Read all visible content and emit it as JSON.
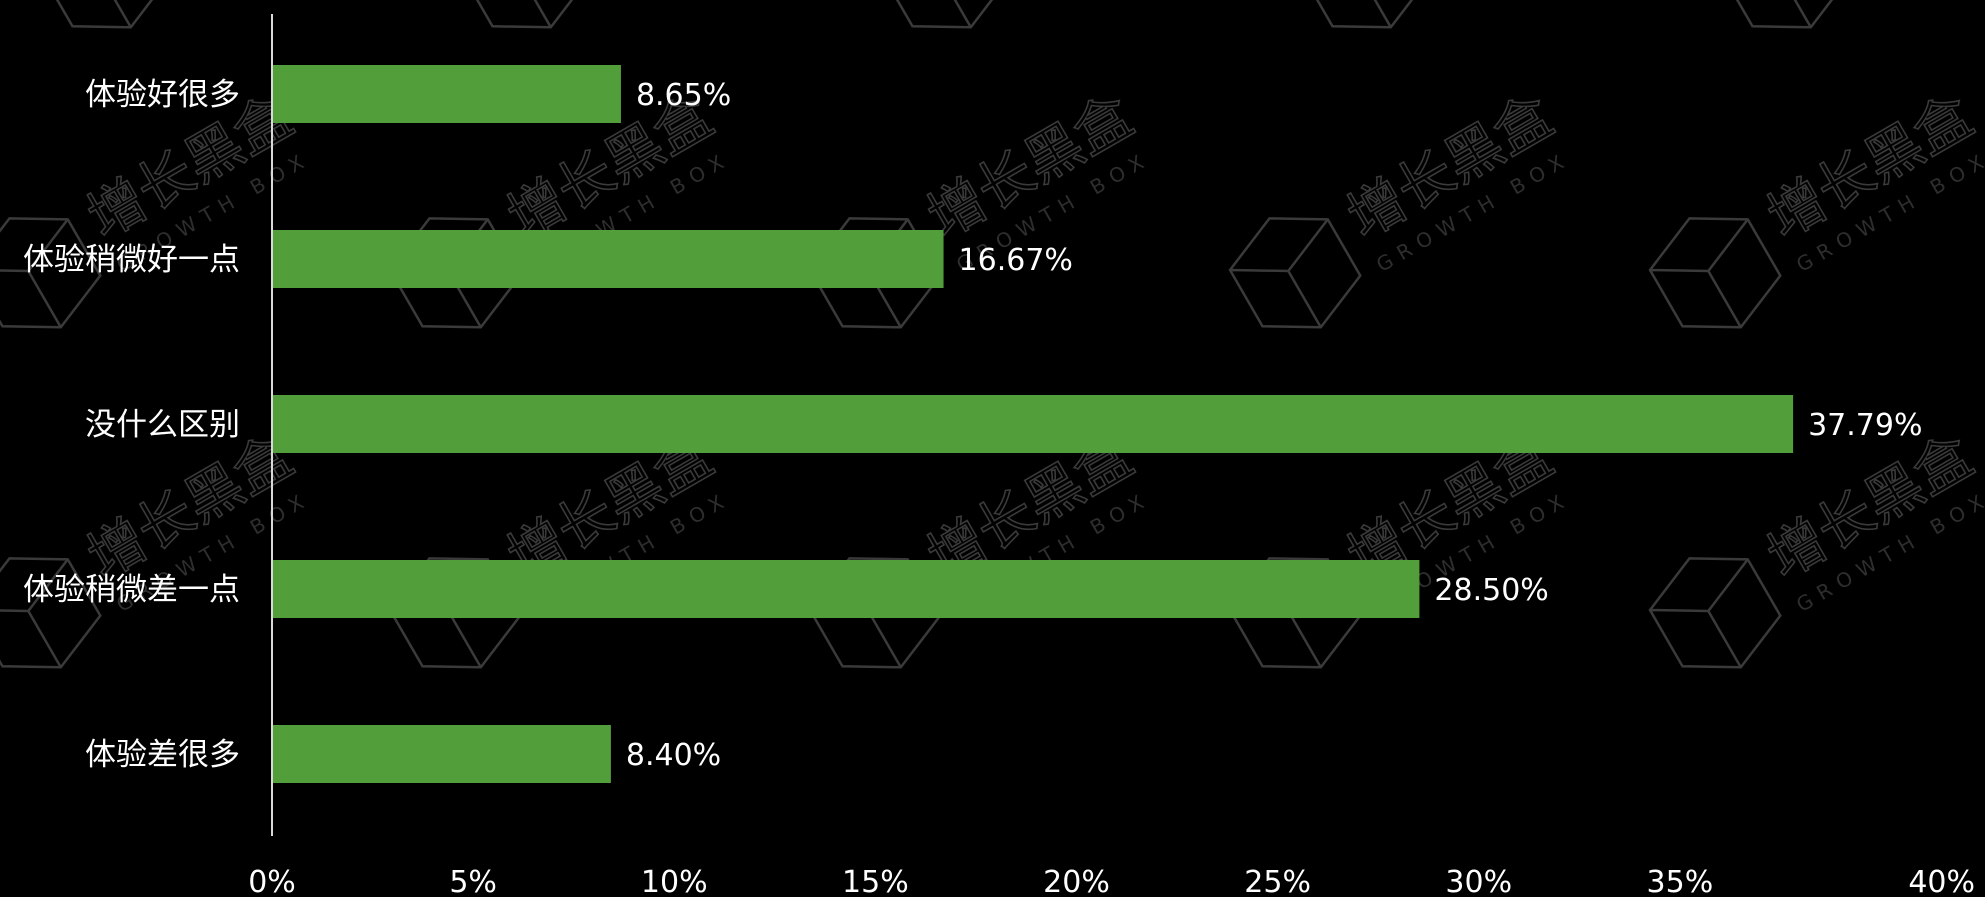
{
  "chart_data": {
    "type": "bar",
    "orientation": "horizontal",
    "categories": [
      "体验好很多",
      "体验稍微好一点",
      "没什么区别",
      "体验稍微差一点",
      "体验差很多"
    ],
    "values": [
      8.65,
      16.67,
      37.79,
      28.5,
      8.4
    ],
    "value_labels": [
      "8.65%",
      "16.67%",
      "37.79%",
      "28.50%",
      "8.40%"
    ],
    "title": "",
    "xlabel": "",
    "ylabel": "",
    "xlim": [
      0,
      40
    ],
    "x_ticks": [
      0,
      5,
      10,
      15,
      20,
      25,
      30,
      35,
      40
    ],
    "x_tick_labels": [
      "0%",
      "5%",
      "10%",
      "15%",
      "20%",
      "25%",
      "30%",
      "35%",
      "40%"
    ],
    "grid": false,
    "legend": "none",
    "bar_color": "#529e3b",
    "background_color": "#000000",
    "text_color": "#ffffff"
  },
  "watermark": {
    "main": "增长黑盒",
    "sub": "GROWTH BOX",
    "color": "#3a3a3a",
    "icon": "box-logo-icon"
  }
}
